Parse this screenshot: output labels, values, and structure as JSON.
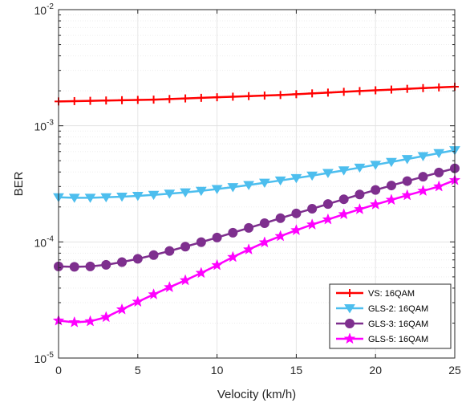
{
  "chart_data": {
    "type": "line",
    "xlabel": "Velocity (km/h)",
    "ylabel": "BER",
    "xlim": [
      0,
      25
    ],
    "ylim": [
      1e-05,
      0.01
    ],
    "yscale": "log",
    "grid": true,
    "legend_position": "bottom-right",
    "x": [
      0,
      1,
      2,
      3,
      4,
      5,
      6,
      7,
      8,
      9,
      10,
      11,
      12,
      13,
      14,
      15,
      16,
      17,
      18,
      19,
      20,
      21,
      22,
      23,
      24,
      25
    ],
    "x_ticks": [
      0,
      5,
      10,
      15,
      20,
      25
    ],
    "x_tick_labels": [
      "0",
      "5",
      "10",
      "15",
      "20",
      "25"
    ],
    "y_ticks": [
      {
        "value": 0.01,
        "base": "10",
        "exp": "-2"
      },
      {
        "value": 0.001,
        "base": "10",
        "exp": "-3"
      },
      {
        "value": 0.0001,
        "base": "10",
        "exp": "-4"
      },
      {
        "value": 1e-05,
        "base": "10",
        "exp": "-5"
      }
    ],
    "series": [
      {
        "name": "VS: 16QAM",
        "color": "#ff0000",
        "marker": "plus",
        "values": [
          0.00162,
          0.00163,
          0.00164,
          0.00165,
          0.00166,
          0.00167,
          0.00168,
          0.0017,
          0.00172,
          0.00174,
          0.00176,
          0.00178,
          0.0018,
          0.00182,
          0.00184,
          0.00187,
          0.0019,
          0.00193,
          0.00196,
          0.00199,
          0.00202,
          0.00205,
          0.00208,
          0.00211,
          0.00214,
          0.00217
        ]
      },
      {
        "name": "GLS-2: 16QAM",
        "color": "#4dbeee",
        "marker": "triangle-down",
        "values": [
          0.000242,
          0.00024,
          0.00024,
          0.000242,
          0.000245,
          0.000249,
          0.000254,
          0.00026,
          0.000267,
          0.000275,
          0.000285,
          0.000296,
          0.000309,
          0.000323,
          0.000338,
          0.000354,
          0.000372,
          0.000392,
          0.000413,
          0.000436,
          0.000461,
          0.000488,
          0.000517,
          0.000548,
          0.000581,
          0.000616
        ]
      },
      {
        "name": "GLS-3: 16QAM",
        "color": "#7e2f8e",
        "marker": "circle",
        "values": [
          6.15e-05,
          6.1e-05,
          6.15e-05,
          6.35e-05,
          6.7e-05,
          7.15e-05,
          7.7e-05,
          8.35e-05,
          9.1e-05,
          9.95e-05,
          0.000109,
          0.00012,
          0.000132,
          0.000145,
          0.00016,
          0.000176,
          0.000193,
          0.000212,
          0.000233,
          0.000256,
          0.00028,
          0.000306,
          0.000334,
          0.000364,
          0.000396,
          0.00043
        ]
      },
      {
        "name": "GLS-5: 16QAM",
        "color": "#ff00ff",
        "marker": "star",
        "values": [
          2.1e-05,
          2.03e-05,
          2.07e-05,
          2.25e-05,
          2.62e-05,
          3.05e-05,
          3.53e-05,
          4.07e-05,
          4.67e-05,
          5.4e-05,
          6.3e-05,
          7.4e-05,
          8.6e-05,
          9.9e-05,
          0.000112,
          0.000126,
          0.000141,
          0.000156,
          0.000173,
          0.000191,
          0.00021,
          0.00023,
          0.000252,
          0.000275,
          0.0003,
          0.00034
        ]
      }
    ]
  }
}
